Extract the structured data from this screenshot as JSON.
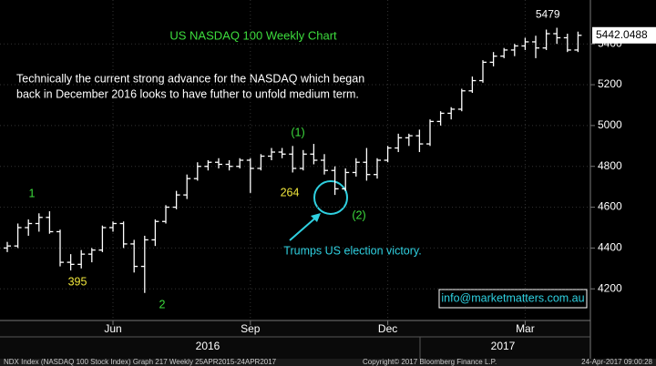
{
  "chart_data": {
    "type": "ohlc",
    "title": "US NASDAQ 100 Weekly Chart",
    "commentary": [
      "Technically the current strong advance for the NASDAQ which began",
      "back in December 2016 looks to have futher to unfold medium term."
    ],
    "categories": [
      null,
      null,
      null,
      null,
      null,
      null,
      null,
      null,
      null,
      null,
      "Jun",
      null,
      null,
      null,
      null,
      null,
      null,
      null,
      null,
      null,
      null,
      null,
      null,
      "Sep",
      null,
      null,
      null,
      null,
      null,
      null,
      null,
      null,
      null,
      null,
      null,
      null,
      "Dec",
      null,
      null,
      null,
      null,
      null,
      null,
      null,
      null,
      null,
      null,
      null,
      null,
      "Mar",
      null,
      null,
      null,
      null,
      null
    ],
    "year_labels": [
      "2016",
      "2017"
    ],
    "color": "#ffffff",
    "series": [
      {
        "open": [
          4400,
          4410,
          4500,
          4520,
          4550,
          4480,
          4330,
          4320,
          4370,
          4390,
          4500,
          4520,
          4420,
          4310,
          4440,
          4530,
          4600,
          4660,
          4740,
          4800,
          4820,
          4810,
          4800,
          4830,
          4790,
          4850,
          4870,
          4860,
          4790,
          4860,
          4830,
          4780,
          4690,
          4770,
          4820,
          4760,
          4830,
          4890,
          4940,
          4950,
          4910,
          5020,
          5060,
          5080,
          5170,
          5220,
          5310,
          5340,
          5370,
          5390,
          5410,
          5380,
          5450,
          5430,
          5370
        ],
        "high": [
          4430,
          4520,
          4540,
          4570,
          4580,
          4490,
          4370,
          4390,
          4400,
          4510,
          4530,
          4530,
          4440,
          4460,
          4540,
          4610,
          4680,
          4760,
          4820,
          4830,
          4840,
          4830,
          4840,
          4840,
          4860,
          4890,
          4890,
          4900,
          4880,
          4910,
          4860,
          4800,
          4790,
          4840,
          4890,
          4840,
          4900,
          4960,
          4960,
          4980,
          5030,
          5070,
          5090,
          5180,
          5240,
          5320,
          5360,
          5380,
          5400,
          5430,
          5440,
          5470,
          5479,
          5450,
          5460
        ],
        "low": [
          4380,
          4400,
          4460,
          4480,
          4470,
          4310,
          4290,
          4300,
          4330,
          4380,
          4480,
          4400,
          4280,
          4180,
          4410,
          4520,
          4590,
          4640,
          4730,
          4780,
          4790,
          4780,
          4790,
          4670,
          4780,
          4830,
          4840,
          4770,
          4780,
          4810,
          4760,
          4660,
          4680,
          4750,
          4730,
          4740,
          4820,
          4870,
          4900,
          4870,
          4900,
          5000,
          5030,
          5070,
          5160,
          5210,
          5290,
          5330,
          5340,
          5370,
          5330,
          5370,
          5400,
          5360,
          5360
        ],
        "close": [
          4410,
          4500,
          4520,
          4550,
          4480,
          4330,
          4320,
          4370,
          4390,
          4500,
          4520,
          4420,
          4310,
          4440,
          4530,
          4600,
          4660,
          4740,
          4800,
          4820,
          4810,
          4800,
          4830,
          4790,
          4850,
          4870,
          4860,
          4790,
          4860,
          4830,
          4780,
          4690,
          4770,
          4820,
          4760,
          4830,
          4890,
          4940,
          4950,
          4910,
          5020,
          5060,
          5080,
          5170,
          5220,
          5310,
          5340,
          5370,
          5390,
          5410,
          5380,
          5450,
          5430,
          5370,
          5442.0488
        ]
      }
    ],
    "ylim": [
      4045,
      5615
    ],
    "yticks": [
      4200,
      4400,
      4600,
      4800,
      5000,
      5200,
      5400
    ],
    "grid": true,
    "annotations": [
      {
        "text": "1",
        "color": "#3ddc3d"
      },
      {
        "text": "395",
        "color": "#f0e63c"
      },
      {
        "text": "2",
        "color": "#3ddc3d"
      },
      {
        "text": "264",
        "color": "#f0e63c"
      },
      {
        "text": "(1)",
        "color": "#3ddc3d"
      },
      {
        "text": "(2)",
        "color": "#3ddc3d"
      },
      {
        "text": "Trumps US election victory.",
        "color": "#2fd0e0"
      }
    ],
    "watermark": "info@marketmatters.com.au",
    "footer": [
      "NDX Index (NASDAQ 100 Stock Index) Graph 217  Weekly 25APR2015-24APR2017",
      "Copyright© 2017 Bloomberg Finance L.P.",
      "24-Apr-2017 09:00:28"
    ]
  }
}
